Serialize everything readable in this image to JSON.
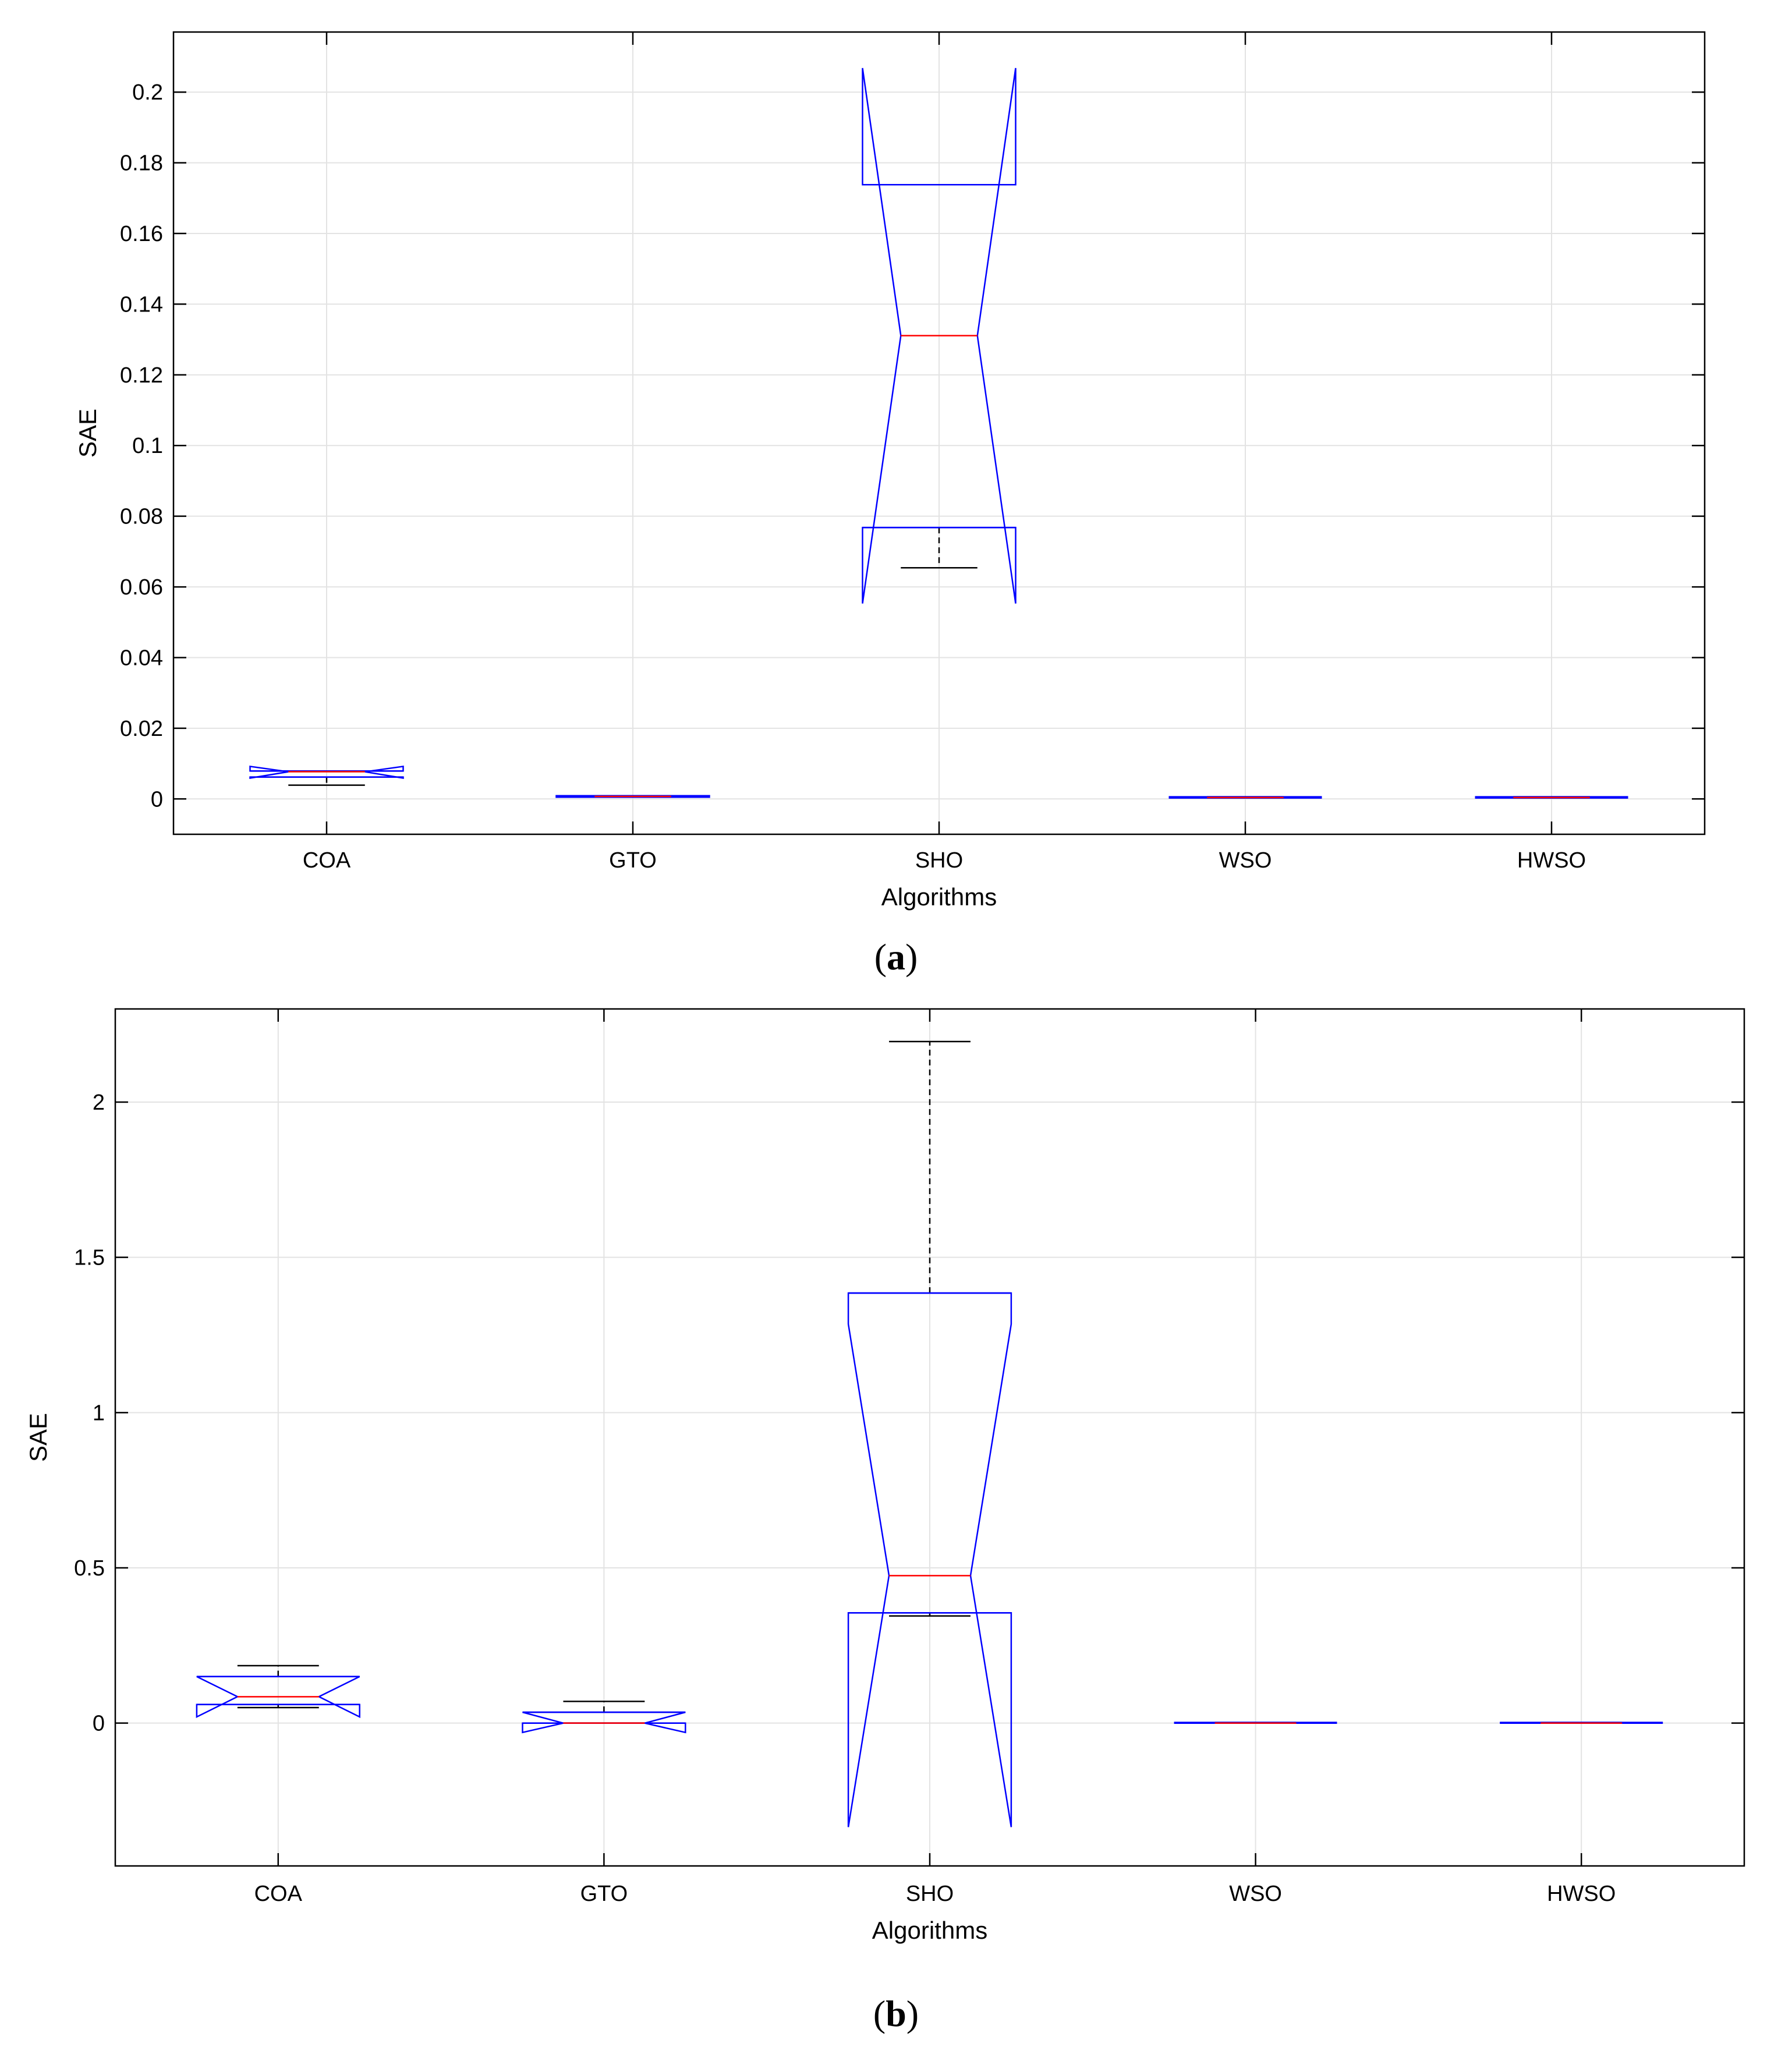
{
  "chart_data": [
    {
      "type": "box",
      "panel_label": {
        "open": "(",
        "letter": "a",
        "close": ")"
      },
      "xlabel": "Algorithms",
      "ylabel": "SAE",
      "categories": [
        "COA",
        "GTO",
        "SHO",
        "WSO",
        "HWSO"
      ],
      "ylim": [
        -0.01,
        0.217
      ],
      "yticks": [
        0,
        0.02,
        0.04,
        0.06,
        0.08,
        0.1,
        0.12,
        0.14,
        0.16,
        0.18,
        0.2
      ],
      "ytick_labels": [
        "0",
        "0.02",
        "0.04",
        "0.06",
        "0.08",
        "0.1",
        "0.12",
        "0.14",
        "0.16",
        "0.18",
        "0.2"
      ],
      "grid": true,
      "notched": true,
      "boxes": [
        {
          "label": "COA",
          "q1": 0.0062,
          "median": 0.0077,
          "q3": 0.0079,
          "notch_low": 0.0059,
          "notch_high": 0.0092,
          "whisker_low": 0.0039,
          "whisker_high": 0.0079
        },
        {
          "label": "GTO",
          "q1": 0.0005,
          "median": 0.0007,
          "q3": 0.0009,
          "notch_low": 0.0006,
          "notch_high": 0.0008,
          "whisker_low": 0.0005,
          "whisker_high": 0.0009
        },
        {
          "label": "SHO",
          "q1": 0.0768,
          "median": 0.1311,
          "q3": 0.1738,
          "notch_low": 0.0553,
          "notch_high": 0.2068,
          "whisker_low": 0.0654,
          "whisker_high": 0.1738
        },
        {
          "label": "WSO",
          "q1": 0.0003,
          "median": 0.0004,
          "q3": 0.0006,
          "notch_low": 0.0003,
          "notch_high": 0.0006,
          "whisker_low": 0.0003,
          "whisker_high": 0.0006
        },
        {
          "label": "HWSO",
          "q1": 0.0003,
          "median": 0.0004,
          "q3": 0.0006,
          "notch_low": 0.0003,
          "notch_high": 0.0006,
          "whisker_low": 0.0003,
          "whisker_high": 0.0006
        }
      ]
    },
    {
      "type": "box",
      "panel_label": {
        "open": "(",
        "letter": "b",
        "close": ")"
      },
      "xlabel": "Algorithms",
      "ylabel": "SAE",
      "categories": [
        "COA",
        "GTO",
        "SHO",
        "WSO",
        "HWSO"
      ],
      "ylim": [
        -0.46,
        2.3
      ],
      "yticks": [
        0,
        0.5,
        1,
        1.5,
        2
      ],
      "ytick_labels": [
        "0",
        "0.5",
        "1",
        "1.5",
        "2"
      ],
      "grid": true,
      "notched": true,
      "boxes": [
        {
          "label": "COA",
          "q1": 0.06,
          "median": 0.085,
          "q3": 0.15,
          "notch_low": 0.02,
          "notch_high": 0.15,
          "whisker_low": 0.05,
          "whisker_high": 0.185
        },
        {
          "label": "GTO",
          "q1": 0.0,
          "median": 0.0,
          "q3": 0.035,
          "notch_low": -0.03,
          "notch_high": 0.035,
          "whisker_low": 0.0,
          "whisker_high": 0.07
        },
        {
          "label": "SHO",
          "q1": 0.355,
          "median": 0.475,
          "q3": 1.385,
          "notch_low": -0.335,
          "notch_high": 1.285,
          "whisker_low": 0.345,
          "whisker_high": 2.195
        },
        {
          "label": "WSO",
          "q1": 0.0,
          "median": 0.0,
          "q3": 0.002,
          "notch_low": 0.0,
          "notch_high": 0.002,
          "whisker_low": 0.0,
          "whisker_high": 0.002
        },
        {
          "label": "HWSO",
          "q1": 0.0,
          "median": 0.0,
          "q3": 0.002,
          "notch_low": 0.0,
          "notch_high": 0.002,
          "whisker_low": 0.0,
          "whisker_high": 0.002
        }
      ]
    }
  ]
}
